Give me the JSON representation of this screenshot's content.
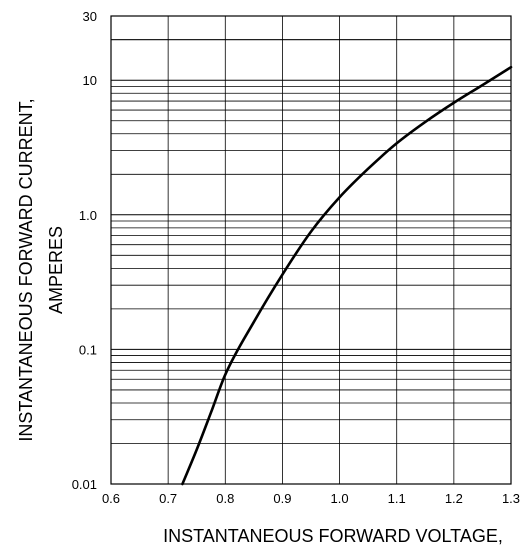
{
  "chart_data": {
    "type": "line",
    "title": "",
    "xlabel": "INSTANTANEOUS FORWARD VOLTAGE,",
    "ylabel": [
      "INSTANTANEOUS FORWARD CURRENT,",
      "AMPERES"
    ],
    "xlim": [
      0.6,
      1.3
    ],
    "ylim": [
      0.01,
      30
    ],
    "y_scale": "log",
    "grid": true,
    "legend": "none",
    "x_ticks": [
      "0.6",
      "0.7",
      "0.8",
      "0.9",
      "1.0",
      "1.1",
      "1.2",
      "1.3"
    ],
    "y_ticks": [
      {
        "value": 0.01,
        "label": "0.01"
      },
      {
        "value": 0.1,
        "label": "0.1"
      },
      {
        "value": 1,
        "label": "1.0"
      },
      {
        "value": 10,
        "label": "10"
      },
      {
        "value": 30,
        "label": "30"
      }
    ],
    "series": [
      {
        "x": [
          0.725,
          0.75,
          0.775,
          0.8,
          0.85,
          0.9,
          0.95,
          1.0,
          1.05,
          1.1,
          1.15,
          1.2,
          1.25,
          1.3
        ],
        "y": [
          0.01,
          0.018,
          0.034,
          0.065,
          0.16,
          0.36,
          0.75,
          1.35,
          2.2,
          3.4,
          4.9,
          6.8,
          9.2,
          12.5
        ]
      }
    ],
    "line_color": "#000000",
    "grid_color": "#000000"
  }
}
